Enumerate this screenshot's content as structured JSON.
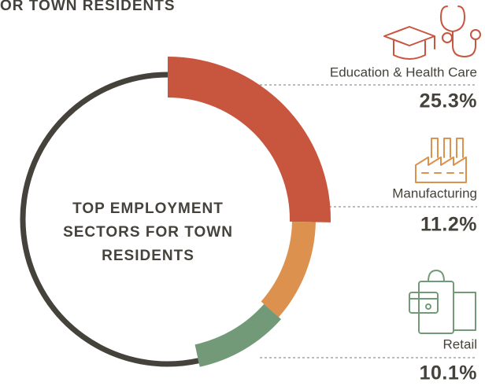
{
  "chart_data": {
    "type": "donut",
    "title": "OR TOWN RESIDENTS",
    "center_label": [
      "TOP EMPLOYMENT",
      "SECTORS FOR TOWN",
      "RESIDENTS"
    ],
    "categories": [
      "Education & Health Care",
      "Manufacturing",
      "Retail"
    ],
    "values": [
      25.3,
      11.2,
      10.1
    ],
    "value_labels": [
      "25.3%",
      "11.2%",
      "10.1%"
    ],
    "colors": [
      "#c8553d",
      "#dd914f",
      "#739a78"
    ],
    "rest_color": "#45423b"
  }
}
